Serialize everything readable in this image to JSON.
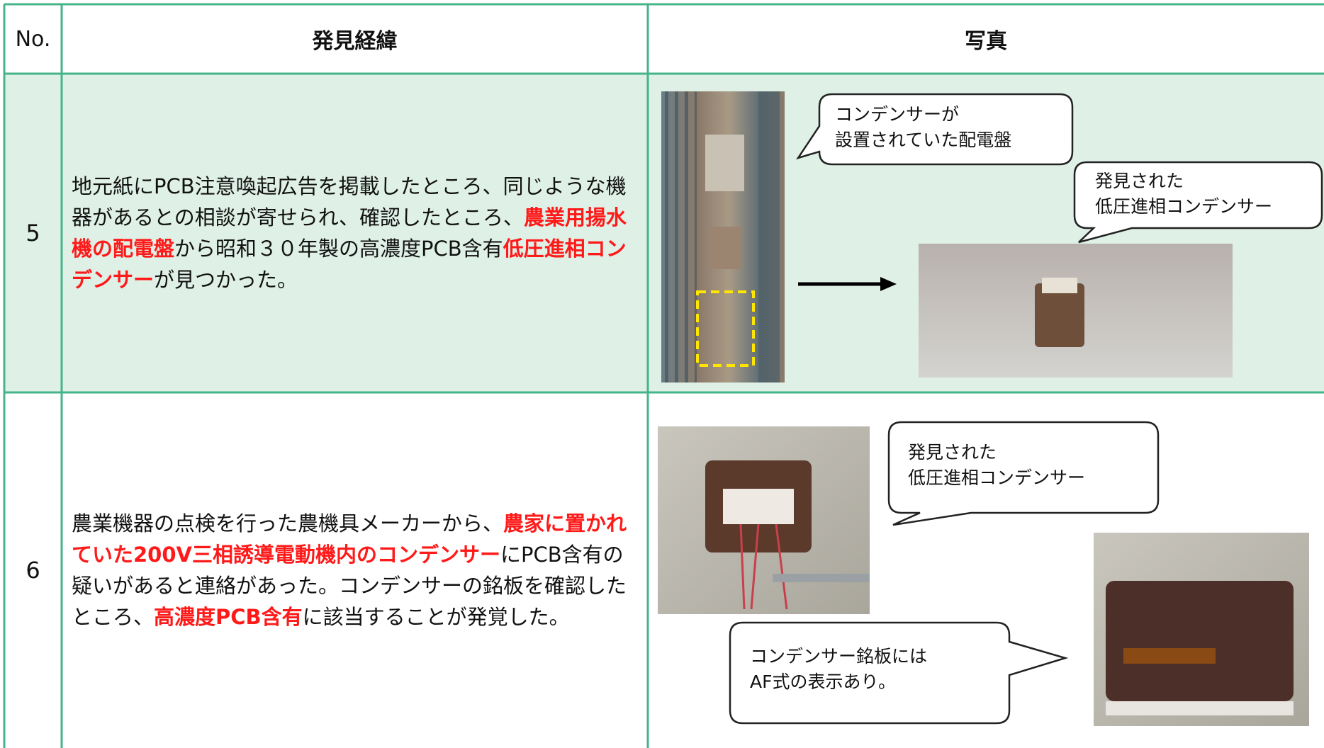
{
  "table": {
    "headers": [
      "No.",
      "発見経緯",
      "写真"
    ],
    "rows": [
      {
        "no": "5",
        "description": [
          {
            "text": "地元紙にPCB注意喚起広告を掲載したところ、同じような機器があるとの相談が寄せられ、確認したところ、",
            "highlight": false
          },
          {
            "text": "農業用揚水機の配電盤",
            "highlight": true
          },
          {
            "text": "から昭和３０年製の高濃度PCB含有",
            "highlight": false
          },
          {
            "text": "低圧進相コンデンサー",
            "highlight": true
          },
          {
            "text": "が見つかった。",
            "highlight": false
          }
        ],
        "callouts": [
          [
            "コンデンサーが",
            "設置されていた配電盤"
          ],
          [
            "発見された",
            "低圧進相コンデンサー"
          ]
        ]
      },
      {
        "no": "6",
        "description": [
          {
            "text": "農業機器の点検を行った農機具メーカーから、",
            "highlight": false
          },
          {
            "text": "農家に置かれていた200V三相誘導電動機内のコンデンサー",
            "highlight": true
          },
          {
            "text": "にPCB含有の疑いがあると連絡があった。コンデンサーの銘板を確認したところ、",
            "highlight": false
          },
          {
            "text": "高濃度PCB含有",
            "highlight": true
          },
          {
            "text": "に該当することが発覚した。",
            "highlight": false
          }
        ],
        "callouts": [
          [
            "発見された",
            "低圧進相コンデンサー"
          ],
          [
            "コンデンサー銘板には",
            "AF式の表示あり。"
          ]
        ]
      }
    ]
  }
}
